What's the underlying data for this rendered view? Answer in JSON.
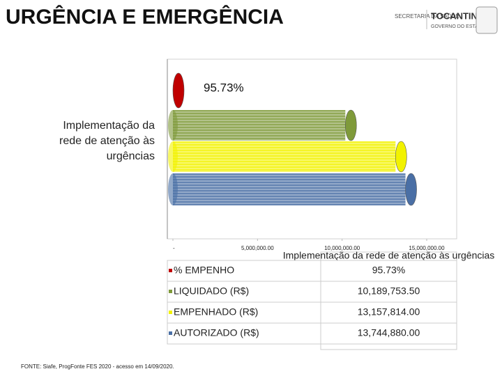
{
  "header": {
    "logo_secretaria": "SECRETARIA DA SAÚDE",
    "logo_state": "TOCANTINS",
    "logo_government": "GOVERNO DO ESTADO"
  },
  "chart_data": {
    "type": "bar",
    "orientation": "horizontal",
    "title": "URGÊNCIA E EMERGÊNCIA",
    "categories": [
      "Implementação da rede de atenção às urgências"
    ],
    "series": [
      {
        "name": "% EMPENHO",
        "color": "#c00000",
        "values": [
          95.73
        ],
        "value_labels": [
          "95.73%"
        ]
      },
      {
        "name": "LIQUIDADO (R$)",
        "color": "#7f9a3a",
        "values": [
          10189753.5
        ],
        "value_labels": [
          "10,189,753.50"
        ]
      },
      {
        "name": "EMPENHADO (R$)",
        "color": "#f2f200",
        "values": [
          13157814.0
        ],
        "value_labels": [
          "13,157,814.00"
        ]
      },
      {
        "name": "AUTORIZADO (R$)",
        "color": "#4a6fa5",
        "values": [
          13744880.0
        ],
        "value_labels": [
          "13,744,880.00"
        ]
      }
    ],
    "xlim": [
      0,
      16500000
    ],
    "xticks": [
      {
        "value": 0,
        "label": "-"
      },
      {
        "value": 5000000,
        "label": "5,000,000.00"
      },
      {
        "value": 10000000,
        "label": "10,000,000.00"
      },
      {
        "value": 15000000,
        "label": "15,000,000.00"
      }
    ],
    "data_table": true
  },
  "footer": {
    "source": "FONTE: Siafe, ProgFonte FES 2020 - acesso em 14/09/2020."
  }
}
